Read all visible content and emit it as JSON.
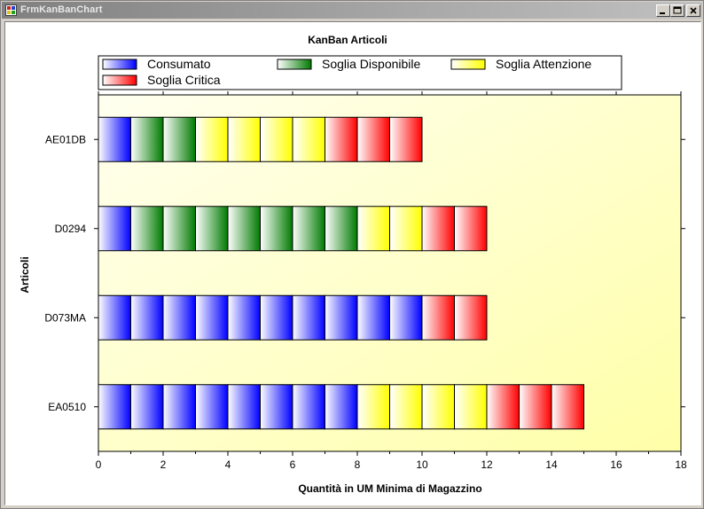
{
  "window": {
    "title": "FrmKanBanChart",
    "controls": {
      "minimize": "minimize",
      "maximize": "maximize",
      "close": "close"
    }
  },
  "chart_data": {
    "type": "bar",
    "orientation": "horizontal",
    "stacked": true,
    "title": "KanBan Articoli",
    "xlabel": "Quantità in UM Minima di Magazzino",
    "ylabel": "Articoli",
    "xlim": [
      0,
      18
    ],
    "xticks": [
      0,
      2,
      4,
      6,
      8,
      10,
      12,
      14,
      16,
      18
    ],
    "categories": [
      "AE01DB",
      "D0294",
      "D073MA",
      "EA0510"
    ],
    "legend_position": "top",
    "series": [
      {
        "name": "Consumato",
        "color": "#0000ff",
        "values": [
          1,
          1,
          10,
          8
        ]
      },
      {
        "name": "Soglia Disponibile",
        "color": "#007a00",
        "values": [
          2,
          7,
          0,
          0
        ]
      },
      {
        "name": "Soglia Attenzione",
        "color": "#ffff00",
        "values": [
          4,
          2,
          0,
          4
        ]
      },
      {
        "name": "Soglia Critica",
        "color": "#ff0000",
        "values": [
          3,
          2,
          2,
          3
        ]
      }
    ],
    "background": "light yellow gradient"
  }
}
